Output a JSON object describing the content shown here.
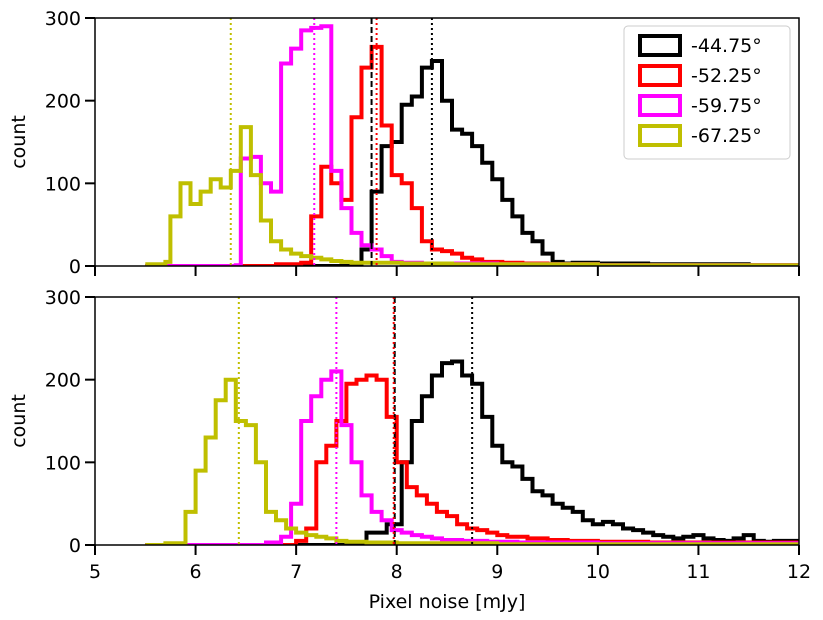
{
  "chart_data": [
    {
      "type": "histogram",
      "panel": "top",
      "ylabel": "count",
      "xlabel": "",
      "xlim": [
        5,
        12
      ],
      "ylim": [
        0,
        300
      ],
      "xticks": [
        5,
        6,
        7,
        8,
        9,
        10,
        11,
        12
      ],
      "yticks": [
        0,
        100,
        200,
        300
      ],
      "ytick_labels": [
        "0",
        "100",
        "200",
        "300"
      ],
      "show_xtick_labels": false,
      "legend": {
        "placement": "top-right",
        "entries": [
          "-44.75°",
          "-52.25°",
          "-59.75°",
          "-67.25°"
        ]
      },
      "series": [
        {
          "name": "-44.75°",
          "color": "#000000",
          "median": 8.35,
          "marker_line": 7.75,
          "steps": [
            [
              5.5,
              0
            ],
            [
              7.55,
              2
            ],
            [
              7.65,
              20
            ],
            [
              7.75,
              90
            ],
            [
              7.85,
              145
            ],
            [
              7.95,
              150
            ],
            [
              8.05,
              195
            ],
            [
              8.15,
              205
            ],
            [
              8.25,
              240
            ],
            [
              8.35,
              248
            ],
            [
              8.45,
              200
            ],
            [
              8.55,
              165
            ],
            [
              8.65,
              160
            ],
            [
              8.75,
              145
            ],
            [
              8.85,
              125
            ],
            [
              8.95,
              105
            ],
            [
              9.05,
              80
            ],
            [
              9.15,
              60
            ],
            [
              9.25,
              40
            ],
            [
              9.35,
              30
            ],
            [
              9.45,
              15
            ],
            [
              9.55,
              5
            ],
            [
              9.65,
              3
            ],
            [
              9.75,
              4
            ],
            [
              10.0,
              3
            ],
            [
              10.5,
              2
            ],
            [
              11.0,
              2
            ],
            [
              11.5,
              1
            ],
            [
              12.0,
              1
            ]
          ]
        },
        {
          "name": "-52.25°",
          "color": "#ff0000",
          "median": 7.8,
          "steps": [
            [
              5.5,
              0
            ],
            [
              6.8,
              2
            ],
            [
              7.05,
              4
            ],
            [
              7.15,
              60
            ],
            [
              7.25,
              120
            ],
            [
              7.35,
              100
            ],
            [
              7.45,
              80
            ],
            [
              7.55,
              180
            ],
            [
              7.65,
              240
            ],
            [
              7.75,
              265
            ],
            [
              7.85,
              170
            ],
            [
              7.95,
              110
            ],
            [
              8.05,
              100
            ],
            [
              8.15,
              70
            ],
            [
              8.25,
              30
            ],
            [
              8.35,
              20
            ],
            [
              8.45,
              18
            ],
            [
              8.55,
              15
            ],
            [
              8.65,
              10
            ],
            [
              8.75,
              8
            ],
            [
              8.85,
              5
            ],
            [
              9.05,
              4
            ],
            [
              9.25,
              3
            ],
            [
              9.5,
              2
            ],
            [
              10.0,
              1
            ],
            [
              10.5,
              1
            ],
            [
              11.0,
              1
            ],
            [
              12.0,
              1
            ]
          ]
        },
        {
          "name": "-59.75°",
          "color": "#ff00ff",
          "median": 7.18,
          "steps": [
            [
              5.5,
              0
            ],
            [
              6.4,
              1
            ],
            [
              6.45,
              130
            ],
            [
              6.55,
              132
            ],
            [
              6.65,
              100
            ],
            [
              6.75,
              90
            ],
            [
              6.85,
              245
            ],
            [
              6.95,
              263
            ],
            [
              7.05,
              285
            ],
            [
              7.15,
              288
            ],
            [
              7.25,
              290
            ],
            [
              7.35,
              115
            ],
            [
              7.45,
              70
            ],
            [
              7.55,
              40
            ],
            [
              7.65,
              25
            ],
            [
              7.75,
              20
            ],
            [
              7.85,
              12
            ],
            [
              7.95,
              5
            ],
            [
              8.05,
              4
            ],
            [
              8.25,
              3
            ],
            [
              8.5,
              3
            ],
            [
              9.0,
              2
            ],
            [
              9.5,
              2
            ],
            [
              10.0,
              1
            ],
            [
              11.0,
              1
            ],
            [
              12.0,
              1
            ]
          ]
        },
        {
          "name": "-67.25°",
          "color": "#bfbf00",
          "median": 6.35,
          "steps": [
            [
              5.5,
              2
            ],
            [
              5.7,
              5
            ],
            [
              5.75,
              60
            ],
            [
              5.85,
              100
            ],
            [
              5.95,
              75
            ],
            [
              6.05,
              90
            ],
            [
              6.15,
              105
            ],
            [
              6.25,
              95
            ],
            [
              6.35,
              115
            ],
            [
              6.45,
              168
            ],
            [
              6.55,
              110
            ],
            [
              6.65,
              55
            ],
            [
              6.75,
              30
            ],
            [
              6.85,
              20
            ],
            [
              6.95,
              15
            ],
            [
              7.05,
              12
            ],
            [
              7.15,
              10
            ],
            [
              7.25,
              8
            ],
            [
              7.35,
              6
            ],
            [
              7.45,
              5
            ],
            [
              7.55,
              4
            ],
            [
              8.05,
              3
            ],
            [
              8.55,
              2
            ],
            [
              9.05,
              2
            ],
            [
              10.0,
              1
            ],
            [
              12.0,
              1
            ]
          ]
        }
      ]
    },
    {
      "type": "histogram",
      "panel": "bottom",
      "ylabel": "count",
      "xlabel": "Pixel noise [mJy]",
      "xlim": [
        5,
        12
      ],
      "ylim": [
        0,
        300
      ],
      "xticks": [
        5,
        6,
        7,
        8,
        9,
        10,
        11,
        12
      ],
      "xtick_labels": [
        "5",
        "6",
        "7",
        "8",
        "9",
        "10",
        "11",
        "12"
      ],
      "yticks": [
        0,
        100,
        200,
        300
      ],
      "ytick_labels": [
        "0",
        "100",
        "200",
        "300"
      ],
      "show_xtick_labels": true,
      "series": [
        {
          "name": "-44.75°",
          "color": "#000000",
          "median": 8.75,
          "marker_line": 7.98,
          "steps": [
            [
              5.5,
              0
            ],
            [
              7.5,
              3
            ],
            [
              7.7,
              15
            ],
            [
              7.9,
              25
            ],
            [
              8.05,
              100
            ],
            [
              8.15,
              150
            ],
            [
              8.25,
              180
            ],
            [
              8.35,
              205
            ],
            [
              8.45,
              220
            ],
            [
              8.55,
              222
            ],
            [
              8.65,
              205
            ],
            [
              8.75,
              195
            ],
            [
              8.85,
              155
            ],
            [
              8.95,
              120
            ],
            [
              9.05,
              100
            ],
            [
              9.15,
              95
            ],
            [
              9.25,
              80
            ],
            [
              9.35,
              65
            ],
            [
              9.45,
              60
            ],
            [
              9.55,
              50
            ],
            [
              9.65,
              45
            ],
            [
              9.75,
              40
            ],
            [
              9.85,
              30
            ],
            [
              9.95,
              25
            ],
            [
              10.05,
              28
            ],
            [
              10.15,
              25
            ],
            [
              10.25,
              20
            ],
            [
              10.35,
              18
            ],
            [
              10.45,
              15
            ],
            [
              10.55,
              12
            ],
            [
              10.65,
              10
            ],
            [
              10.75,
              8
            ],
            [
              10.85,
              10
            ],
            [
              10.95,
              12
            ],
            [
              11.05,
              8
            ],
            [
              11.15,
              6
            ],
            [
              11.25,
              5
            ],
            [
              11.35,
              8
            ],
            [
              11.45,
              12
            ],
            [
              11.55,
              5
            ],
            [
              11.65,
              4
            ],
            [
              11.75,
              5
            ],
            [
              12.0,
              5
            ]
          ]
        },
        {
          "name": "-52.25°",
          "color": "#ff0000",
          "median": 7.97,
          "steps": [
            [
              5.5,
              0
            ],
            [
              7.0,
              5
            ],
            [
              7.1,
              20
            ],
            [
              7.2,
              100
            ],
            [
              7.3,
              120
            ],
            [
              7.4,
              150
            ],
            [
              7.5,
              195
            ],
            [
              7.6,
              200
            ],
            [
              7.7,
              205
            ],
            [
              7.8,
              200
            ],
            [
              7.9,
              155
            ],
            [
              8.0,
              100
            ],
            [
              8.1,
              70
            ],
            [
              8.2,
              60
            ],
            [
              8.3,
              50
            ],
            [
              8.4,
              40
            ],
            [
              8.5,
              35
            ],
            [
              8.6,
              25
            ],
            [
              8.7,
              20
            ],
            [
              8.8,
              18
            ],
            [
              8.9,
              15
            ],
            [
              9.0,
              12
            ],
            [
              9.1,
              10
            ],
            [
              9.3,
              8
            ],
            [
              9.5,
              6
            ],
            [
              9.7,
              5
            ],
            [
              10.0,
              4
            ],
            [
              10.5,
              3
            ],
            [
              11.0,
              3
            ],
            [
              11.5,
              3
            ],
            [
              12.0,
              3
            ]
          ]
        },
        {
          "name": "-59.75°",
          "color": "#ff00ff",
          "median": 7.4,
          "steps": [
            [
              5.5,
              0
            ],
            [
              6.7,
              3
            ],
            [
              6.85,
              10
            ],
            [
              6.95,
              50
            ],
            [
              7.05,
              150
            ],
            [
              7.15,
              180
            ],
            [
              7.25,
              200
            ],
            [
              7.35,
              210
            ],
            [
              7.45,
              145
            ],
            [
              7.55,
              100
            ],
            [
              7.65,
              60
            ],
            [
              7.75,
              40
            ],
            [
              7.85,
              30
            ],
            [
              7.95,
              18
            ],
            [
              8.05,
              15
            ],
            [
              8.15,
              12
            ],
            [
              8.25,
              10
            ],
            [
              8.35,
              8
            ],
            [
              8.45,
              6
            ],
            [
              8.65,
              5
            ],
            [
              8.9,
              4
            ],
            [
              9.2,
              3
            ],
            [
              9.5,
              3
            ],
            [
              10.0,
              2
            ],
            [
              10.5,
              2
            ],
            [
              11.0,
              2
            ],
            [
              12.0,
              2
            ]
          ]
        },
        {
          "name": "-67.25°",
          "color": "#bfbf00",
          "median": 6.43,
          "steps": [
            [
              5.5,
              0
            ],
            [
              5.7,
              2
            ],
            [
              5.9,
              40
            ],
            [
              6.0,
              90
            ],
            [
              6.1,
              130
            ],
            [
              6.2,
              175
            ],
            [
              6.3,
              200
            ],
            [
              6.4,
              150
            ],
            [
              6.5,
              145
            ],
            [
              6.6,
              100
            ],
            [
              6.7,
              40
            ],
            [
              6.8,
              30
            ],
            [
              6.9,
              20
            ],
            [
              7.0,
              15
            ],
            [
              7.1,
              12
            ],
            [
              7.2,
              10
            ],
            [
              7.3,
              8
            ],
            [
              7.4,
              5
            ],
            [
              7.5,
              4
            ],
            [
              7.7,
              3
            ],
            [
              8.0,
              2
            ],
            [
              8.5,
              2
            ],
            [
              9.0,
              1
            ],
            [
              10.0,
              1
            ],
            [
              12.0,
              1
            ]
          ]
        }
      ]
    }
  ]
}
